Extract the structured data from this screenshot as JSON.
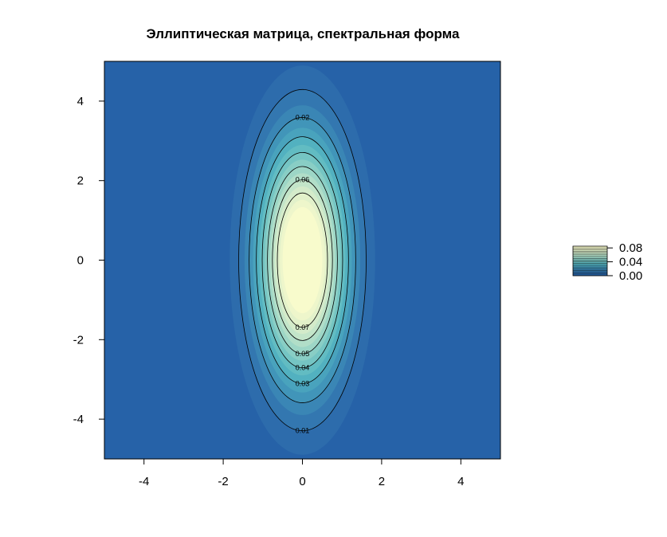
{
  "chart_data": {
    "type": "heatmap",
    "subtype": "filled-contour",
    "title": "Эллиптическая матрица, спектральная форма",
    "xlabel": "",
    "ylabel": "",
    "xlim": [
      -5,
      5
    ],
    "ylim": [
      -5,
      5
    ],
    "x_ticks": [
      -4,
      -2,
      0,
      2,
      4
    ],
    "y_ticks": [
      -4,
      -2,
      0,
      2,
      4
    ],
    "x_tick_labels": [
      "-4",
      "-2",
      "0",
      "2",
      "4"
    ],
    "y_tick_labels": [
      "4",
      "2",
      "0",
      "-2",
      "-4"
    ],
    "density": {
      "form": "bivariate-normal",
      "mean": [
        0,
        0
      ],
      "sd_x": 0.75,
      "sd_y": 2.0,
      "peak": 0.1
    },
    "fill_levels": [
      0.0,
      0.005,
      0.01,
      0.015,
      0.02,
      0.025,
      0.03,
      0.035,
      0.04,
      0.045,
      0.05,
      0.055,
      0.06,
      0.065,
      0.07,
      0.075,
      0.08,
      0.085
    ],
    "fill_colors": [
      "#2662a8",
      "#2d6cac",
      "#3377b0",
      "#3a86b5",
      "#4195b9",
      "#49a3bd",
      "#52b1c0",
      "#62bcc2",
      "#75c5c3",
      "#89cec5",
      "#9dd6c6",
      "#b1dec8",
      "#c3e5c9",
      "#d4ebca",
      "#e2f1ca",
      "#eef6cb",
      "#f8fbcc"
    ],
    "contour_lines": [
      {
        "level": 0.01,
        "label": "0.01",
        "label_pos": "bottom"
      },
      {
        "level": 0.02,
        "label": "0.02",
        "label_pos": "top"
      },
      {
        "level": 0.03,
        "label": "0.03",
        "label_pos": "bottom"
      },
      {
        "level": 0.04,
        "label": "0.04",
        "label_pos": "bottom"
      },
      {
        "level": 0.05,
        "label": "0.05",
        "label_pos": "bottom"
      },
      {
        "level": 0.06,
        "label": "0.06",
        "label_pos": "top"
      },
      {
        "level": 0.07,
        "label": "0.07",
        "label_pos": "bottom"
      }
    ],
    "legend": {
      "placement": "right",
      "labels": [
        "0.08",
        "0.04",
        "0.00"
      ],
      "values": [
        0.08,
        0.04,
        0.0
      ]
    },
    "grid": false
  }
}
